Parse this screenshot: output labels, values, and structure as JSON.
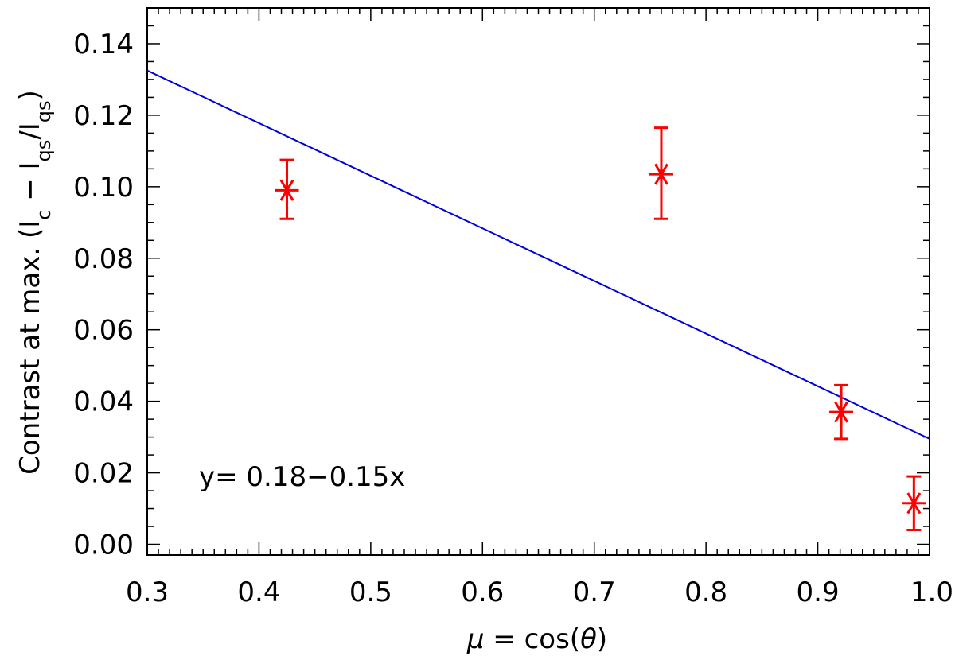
{
  "chart_data": {
    "type": "scatter",
    "xlabel": "μ = cos(θ)",
    "ylabel": "Contrast at max. (Ic − Iqs/Iqs)",
    "xlim": [
      0.3,
      1.0
    ],
    "ylim": [
      -0.003,
      0.15
    ],
    "x_ticks": [
      "0.3",
      "0.4",
      "0.5",
      "0.6",
      "0.7",
      "0.8",
      "0.9",
      "1.0"
    ],
    "y_ticks": [
      "0.00",
      "0.02",
      "0.04",
      "0.06",
      "0.08",
      "0.10",
      "0.12",
      "0.14"
    ],
    "grid": false,
    "series": [
      {
        "marker": "asterisk",
        "color": "#ff0000",
        "points": [
          {
            "x": 0.425,
            "y": 0.099,
            "err_low": 0.091,
            "err_high": 0.1075
          },
          {
            "x": 0.76,
            "y": 0.1035,
            "err_low": 0.091,
            "err_high": 0.1165
          },
          {
            "x": 0.921,
            "y": 0.037,
            "err_low": 0.0295,
            "err_high": 0.0445
          },
          {
            "x": 0.986,
            "y": 0.0115,
            "err_low": 0.004,
            "err_high": 0.019
          }
        ]
      },
      {
        "type": "line",
        "color": "#0000dd",
        "x": [
          0.3,
          1.0
        ],
        "y": [
          0.1325,
          0.0295
        ]
      }
    ],
    "annotation": "y= 0.18−0.15x"
  }
}
